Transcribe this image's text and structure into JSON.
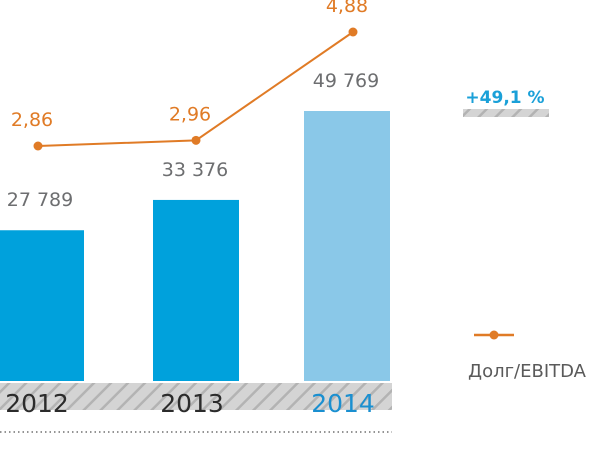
{
  "chart_data": {
    "type": "bar",
    "categories": [
      "2012",
      "2013",
      "2014"
    ],
    "series": [
      {
        "values": [
          27789,
          33376,
          49769
        ],
        "labels": [
          "27 789",
          "33 376",
          "49 769"
        ],
        "colors": [
          "#00a1dc",
          "#00a1dc",
          "#8ac8e8"
        ],
        "type": "bar"
      },
      {
        "name": "Долг/EBITDA",
        "values": [
          2.86,
          2.96,
          4.88
        ],
        "labels": [
          "2,86",
          "2,96",
          "4,88"
        ],
        "color": "#e07b26",
        "type": "line"
      }
    ],
    "highlight_category": "2014",
    "annotation": "+49,1 %",
    "legend": {
      "position": "right",
      "label": "Долг/EBITDA"
    },
    "grid": false
  },
  "colors": {
    "bar": "#00a1dc",
    "bar_highlight": "#8ac8e8",
    "line": "#e07b26",
    "hatch": "#c4c4c4",
    "annotation": "#1aa0d8"
  }
}
